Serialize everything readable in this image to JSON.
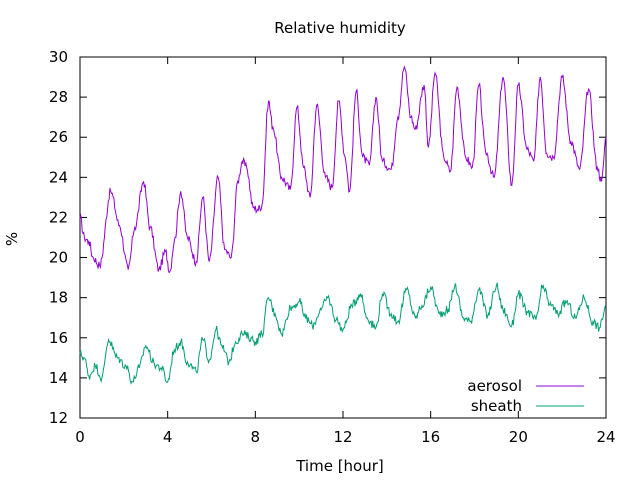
{
  "chart_data": {
    "type": "line",
    "title": "Relative humidity",
    "xlabel": "Time [hour]",
    "ylabel": "%",
    "xlim": [
      0,
      24
    ],
    "ylim": [
      12,
      30
    ],
    "xticks": [
      0,
      4,
      8,
      12,
      16,
      20,
      24
    ],
    "yticks": [
      12,
      14,
      16,
      18,
      20,
      22,
      24,
      26,
      28,
      30
    ],
    "grid": false,
    "legend_position": "bottom-right",
    "series": [
      {
        "name": "aerosol",
        "color": "#9400d3",
        "x": [
          0,
          0.2,
          0.4,
          0.6,
          0.9,
          1.4,
          1.8,
          2.2,
          2.5,
          2.9,
          3.2,
          3.6,
          3.9,
          4.1,
          4.3,
          4.6,
          4.9,
          5.3,
          5.6,
          5.9,
          6.3,
          6.6,
          6.9,
          7.2,
          7.4,
          7.6,
          7.9,
          8.1,
          8.3,
          8.6,
          8.8,
          9.2,
          9.6,
          9.9,
          10.2,
          10.5,
          10.8,
          11.2,
          11.5,
          11.8,
          12.1,
          12.3,
          12.6,
          12.9,
          13.2,
          13.5,
          13.8,
          14.2,
          14.5,
          14.8,
          15.1,
          15.3,
          15.7,
          15.9,
          16.2,
          16.6,
          16.9,
          17.2,
          17.6,
          17.9,
          18.2,
          18.5,
          18.9,
          19.3,
          19.7,
          20.0,
          20.4,
          20.7,
          21.0,
          21.3,
          21.6,
          22.0,
          22.4,
          22.8,
          23.2,
          23.6,
          23.8,
          24.0
        ],
        "values": [
          22.0,
          21.0,
          20.8,
          20.0,
          19.6,
          23.3,
          21.6,
          19.4,
          21.5,
          23.8,
          21.5,
          19.4,
          20.3,
          19.3,
          20.8,
          23.3,
          21.0,
          19.8,
          23.0,
          19.8,
          24.0,
          20.4,
          20.0,
          23.8,
          24.8,
          24.5,
          22.5,
          22.4,
          22.6,
          27.8,
          26.5,
          24.0,
          23.4,
          27.5,
          24.5,
          23.0,
          27.6,
          24.0,
          23.5,
          27.8,
          25.0,
          23.3,
          28.3,
          25.0,
          24.6,
          28.0,
          24.8,
          24.4,
          27.0,
          29.5,
          27.0,
          26.4,
          28.6,
          25.5,
          29.2,
          25.0,
          24.3,
          28.5,
          25.0,
          24.5,
          28.6,
          25.3,
          24.0,
          29.0,
          23.6,
          28.6,
          25.4,
          24.8,
          29.0,
          25.2,
          25.0,
          29.0,
          25.8,
          24.4,
          28.4,
          24.5,
          23.8,
          26.0
        ]
      },
      {
        "name": "sheath",
        "color": "#009e73",
        "x": [
          0,
          0.2,
          0.4,
          0.7,
          1.0,
          1.3,
          1.7,
          2.1,
          2.4,
          2.7,
          3.0,
          3.4,
          3.7,
          4.0,
          4.3,
          4.6,
          4.9,
          5.3,
          5.6,
          5.9,
          6.2,
          6.5,
          6.8,
          7.1,
          7.4,
          7.8,
          8.0,
          8.3,
          8.6,
          8.9,
          9.2,
          9.6,
          10.0,
          10.3,
          10.6,
          11.0,
          11.3,
          11.7,
          12.0,
          12.4,
          12.8,
          13.1,
          13.5,
          13.8,
          14.2,
          14.5,
          14.9,
          15.3,
          15.6,
          16.0,
          16.4,
          16.8,
          17.1,
          17.5,
          17.8,
          18.2,
          18.6,
          19.0,
          19.3,
          19.7,
          20.0,
          20.4,
          20.8,
          21.1,
          21.5,
          21.8,
          22.2,
          22.6,
          23.0,
          23.4,
          23.7,
          24.0
        ],
        "values": [
          15.2,
          15.0,
          14.1,
          14.6,
          14.0,
          15.9,
          15.0,
          14.6,
          13.8,
          14.5,
          15.6,
          14.7,
          14.5,
          13.8,
          15.4,
          15.8,
          14.8,
          14.3,
          15.9,
          14.9,
          16.4,
          15.5,
          14.8,
          15.8,
          16.2,
          16.0,
          15.8,
          16.2,
          18.0,
          17.2,
          16.2,
          17.5,
          17.8,
          17.0,
          16.6,
          17.4,
          18.0,
          16.9,
          16.4,
          17.6,
          18.2,
          17.0,
          16.5,
          18.2,
          17.2,
          16.8,
          18.4,
          17.0,
          17.6,
          18.5,
          17.2,
          17.4,
          18.6,
          17.0,
          16.8,
          18.4,
          17.1,
          18.6,
          17.4,
          16.6,
          18.2,
          17.3,
          16.9,
          18.5,
          17.6,
          17.2,
          17.8,
          17.0,
          18.0,
          16.8,
          16.5,
          17.6
        ]
      }
    ]
  }
}
